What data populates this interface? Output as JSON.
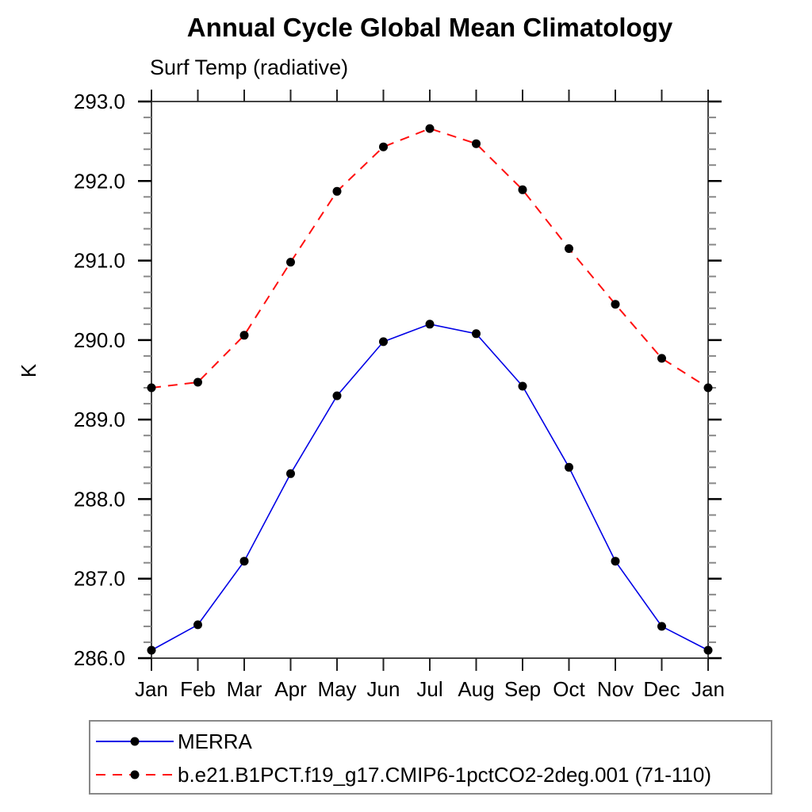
{
  "page": {
    "background": "#ffffff"
  },
  "header": {
    "title": "Annual Cycle Global Mean Climatology",
    "subtitle": "Surf Temp (radiative)"
  },
  "chart_data": {
    "type": "line",
    "title": "Annual Cycle Global Mean Climatology",
    "subtitle": "Surf Temp (radiative)",
    "xlabel": "",
    "ylabel": "K",
    "categories": [
      "Jan",
      "Feb",
      "Mar",
      "Apr",
      "May",
      "Jun",
      "Jul",
      "Aug",
      "Sep",
      "Oct",
      "Nov",
      "Dec",
      "Jan"
    ],
    "series": [
      {
        "name": "MERRA",
        "color": "#0000e6",
        "line_style": "solid",
        "marker": "filled-circle",
        "values": [
          286.1,
          286.42,
          287.22,
          288.32,
          289.3,
          289.98,
          290.2,
          290.08,
          289.42,
          288.4,
          287.22,
          286.4,
          286.1
        ]
      },
      {
        "name": "b.e21.B1PCT.f19_g17.CMIP6-1pctCO2-2deg.001 (71-110)",
        "color": "#ff1010",
        "line_style": "dashed",
        "marker": "filled-circle",
        "values": [
          289.4,
          289.47,
          290.06,
          290.98,
          291.87,
          292.43,
          292.66,
          292.47,
          291.89,
          291.15,
          290.45,
          289.77,
          289.4
        ]
      }
    ],
    "marker_color": "#000000",
    "ylim": [
      286.0,
      293.0
    ],
    "ytick_interval": 1.0,
    "yminor_interval": 0.2,
    "ytick_labels": [
      "286.0",
      "287.0",
      "288.0",
      "289.0",
      "290.0",
      "291.0",
      "292.0",
      "293.0"
    ],
    "grid": false,
    "legend_position": "bottom-left"
  }
}
